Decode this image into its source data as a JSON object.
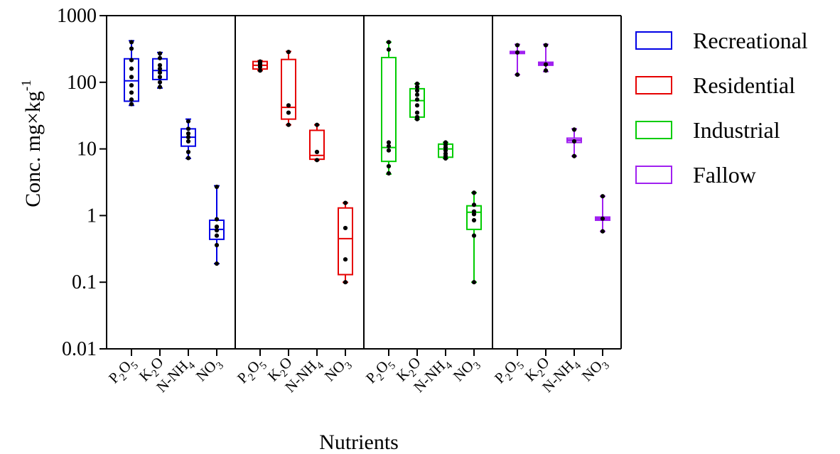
{
  "chart_data": {
    "type": "box",
    "ylabel": {
      "text": "Conc. mg×kg",
      "superscript": "-1"
    },
    "xlabel": "Nutrients",
    "yscale": "log",
    "ylim": [
      0.01,
      1000
    ],
    "yticks": [
      {
        "value": 0.01,
        "label": "0.01"
      },
      {
        "value": 0.1,
        "label": "0.1"
      },
      {
        "value": 1,
        "label": "1"
      },
      {
        "value": 10,
        "label": "10"
      },
      {
        "value": 100,
        "label": "100"
      },
      {
        "value": 1000,
        "label": "1000"
      }
    ],
    "categories": [
      {
        "base": "P",
        "sub1": "2",
        "mid": "O",
        "sub2": "5"
      },
      {
        "base": "K",
        "sub1": "2",
        "mid": "O",
        "sub2": ""
      },
      {
        "base": "N-NH",
        "sub1": "4",
        "mid": "",
        "sub2": ""
      },
      {
        "base": "NO",
        "sub1": "3",
        "mid": "",
        "sub2": ""
      }
    ],
    "legend_position": "right",
    "series": [
      {
        "name": "Recreational",
        "color": "#0000e6",
        "boxes": [
          {
            "min": 45,
            "q1": 52,
            "median": 105,
            "q3": 225,
            "max": 420,
            "points": [
              47,
              55,
              70,
              90,
              120,
              160,
              215,
              320,
              400
            ]
          },
          {
            "min": 82,
            "q1": 110,
            "median": 150,
            "q3": 225,
            "max": 280,
            "points": [
              85,
              100,
              120,
              140,
              160,
              180,
              230,
              270
            ]
          },
          {
            "min": 7.2,
            "q1": 11,
            "median": 15,
            "q3": 20,
            "max": 28,
            "points": [
              7.3,
              9,
              13,
              15,
              17,
              20,
              26
            ]
          },
          {
            "min": 0.19,
            "q1": 0.44,
            "median": 0.62,
            "q3": 0.85,
            "max": 2.8,
            "points": [
              0.19,
              0.36,
              0.5,
              0.6,
              0.68,
              0.88,
              2.7
            ]
          }
        ]
      },
      {
        "name": "Residential",
        "color": "#e60000",
        "boxes": [
          {
            "min": 150,
            "q1": 158,
            "median": 180,
            "q3": 205,
            "max": 210,
            "points": [
              150,
              170,
              185,
              195,
              205
            ]
          },
          {
            "min": 23,
            "q1": 28,
            "median": 42,
            "q3": 220,
            "max": 290,
            "points": [
              23,
              35,
              45,
              285
            ]
          },
          {
            "min": 6.8,
            "q1": 7,
            "median": 8,
            "q3": 19,
            "max": 23,
            "points": [
              6.8,
              9,
              23
            ]
          },
          {
            "min": 0.1,
            "q1": 0.13,
            "median": 0.45,
            "q3": 1.3,
            "max": 1.55,
            "points": [
              0.1,
              0.22,
              0.65,
              1.55
            ]
          }
        ]
      },
      {
        "name": "Industrial",
        "color": "#00cc00",
        "boxes": [
          {
            "min": 4.2,
            "q1": 6.5,
            "median": 10.5,
            "q3": 235,
            "max": 400,
            "points": [
              4.3,
              5.5,
              9.5,
              11,
              12.5,
              310,
              400
            ]
          },
          {
            "min": 28,
            "q1": 30,
            "median": 53,
            "q3": 80,
            "max": 95,
            "points": [
              28,
              30,
              35,
              45,
              55,
              65,
              75,
              85,
              95
            ]
          },
          {
            "min": 7.2,
            "q1": 7.5,
            "median": 10,
            "q3": 11.8,
            "max": 12.5,
            "points": [
              7.2,
              7.8,
              8.5,
              9.5,
              10.5,
              11.5,
              12.5
            ]
          },
          {
            "min": 0.1,
            "q1": 0.62,
            "median": 1.12,
            "q3": 1.4,
            "max": 2.2,
            "points": [
              0.1,
              0.5,
              0.85,
              1.05,
              1.15,
              1.45,
              2.2
            ]
          }
        ]
      },
      {
        "name": "Fallow",
        "color": "#a020f0",
        "boxes": [
          {
            "min": 130,
            "q1": 270,
            "median": 280,
            "q3": 290,
            "max": 370,
            "points": [
              130,
              280,
              360
            ]
          },
          {
            "min": 145,
            "q1": 180,
            "median": 190,
            "q3": 200,
            "max": 370,
            "points": [
              150,
              185,
              360
            ]
          },
          {
            "min": 7.8,
            "q1": 12.5,
            "median": 13.5,
            "q3": 14.5,
            "max": 20,
            "points": [
              7.8,
              13,
              19.5
            ]
          },
          {
            "min": 0.58,
            "q1": 0.85,
            "median": 0.9,
            "q3": 0.95,
            "max": 1.95,
            "points": [
              0.58,
              0.9,
              1.95
            ]
          }
        ]
      }
    ]
  }
}
